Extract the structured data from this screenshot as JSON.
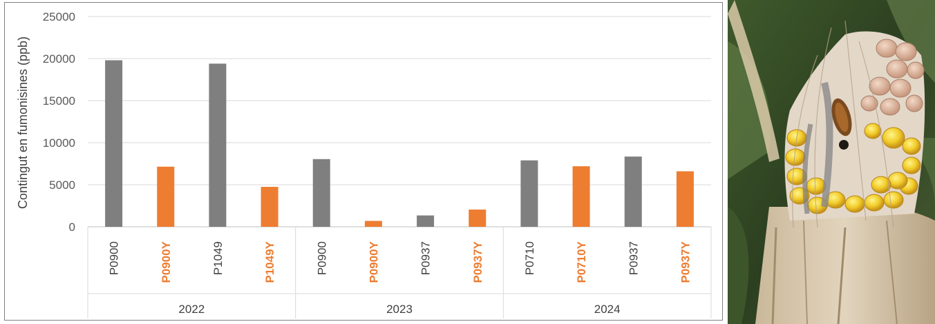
{
  "chart_data": {
    "type": "bar",
    "ylabel": "Contingut en fumonisines (ppb)",
    "ylim": [
      0,
      25000
    ],
    "yticks": [
      0,
      5000,
      10000,
      15000,
      20000,
      25000
    ],
    "grid": true,
    "legend": "none",
    "groups": [
      {
        "label": "2022",
        "items": [
          {
            "label": "P0900",
            "value": 19800,
            "highlight": false
          },
          {
            "label": "P0900Y",
            "value": 7150,
            "highlight": true
          },
          {
            "label": "P1049",
            "value": 19400,
            "highlight": false
          },
          {
            "label": "P1049Y",
            "value": 4750,
            "highlight": true
          }
        ]
      },
      {
        "label": "2023",
        "items": [
          {
            "label": "P0900",
            "value": 8050,
            "highlight": false
          },
          {
            "label": "P0900Y",
            "value": 700,
            "highlight": true
          },
          {
            "label": "P0937",
            "value": 1350,
            "highlight": false
          },
          {
            "label": "P0937Y",
            "value": 2050,
            "highlight": true
          }
        ]
      },
      {
        "label": "2024",
        "items": [
          {
            "label": "P0710",
            "value": 7900,
            "highlight": false
          },
          {
            "label": "P0710Y",
            "value": 7200,
            "highlight": true
          },
          {
            "label": "P0937",
            "value": 8350,
            "highlight": false
          },
          {
            "label": "P0937Y",
            "value": 6600,
            "highlight": true
          }
        ]
      }
    ],
    "colors": {
      "standard": "#7f7f7f",
      "highlight": "#ed7d31"
    }
  }
}
